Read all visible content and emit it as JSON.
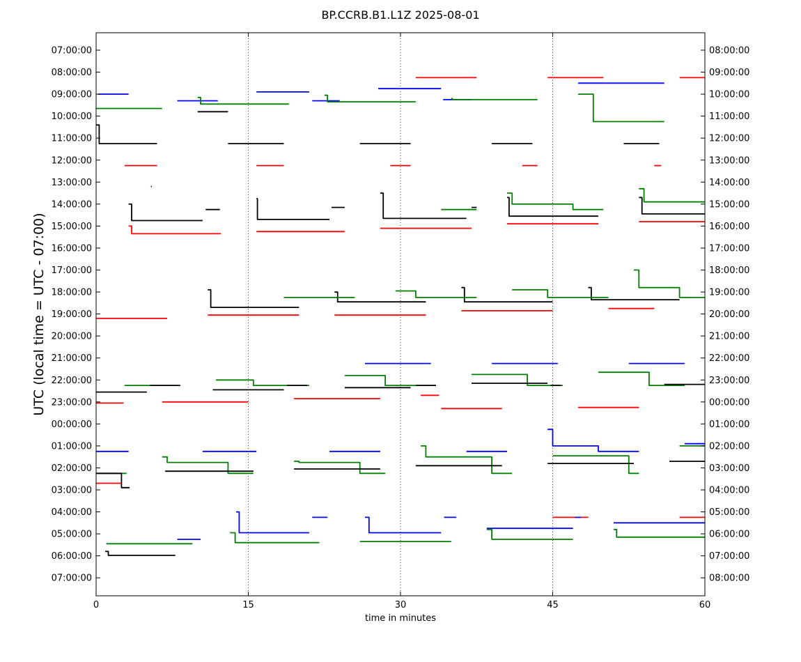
{
  "chart_data": {
    "type": "line",
    "title": "BP.CCRB.B1.L1Z 2025-08-01",
    "xlabel": "time in minutes",
    "ylabel": "UTC (local time = UTC - 07:00)",
    "xlim": [
      0,
      60
    ],
    "x_ticks": [
      0,
      15,
      30,
      45,
      60
    ],
    "x_tick_labels": [
      "0",
      "15",
      "30",
      "45",
      "60"
    ],
    "grid": "vertical dotted lines at 15, 30, 45",
    "left_tick_labels": [
      "07:00:00",
      "08:00:00",
      "09:00:00",
      "10:00:00",
      "11:00:00",
      "12:00:00",
      "13:00:00",
      "14:00:00",
      "15:00:00",
      "16:00:00",
      "17:00:00",
      "18:00:00",
      "19:00:00",
      "20:00:00",
      "21:00:00",
      "22:00:00",
      "23:00:00",
      "00:00:00",
      "01:00:00",
      "02:00:00",
      "03:00:00",
      "04:00:00",
      "05:00:00",
      "06:00:00",
      "07:00:00"
    ],
    "right_tick_labels": [
      "08:00:00",
      "09:00:00",
      "10:00:00",
      "11:00:00",
      "12:00:00",
      "13:00:00",
      "14:00:00",
      "15:00:00",
      "16:00:00",
      "17:00:00",
      "18:00:00",
      "19:00:00",
      "20:00:00",
      "21:00:00",
      "22:00:00",
      "23:00:00",
      "00:00:00",
      "01:00:00",
      "02:00:00",
      "03:00:00",
      "04:00:00",
      "05:00:00",
      "06:00:00",
      "07:00:00",
      "08:00:00"
    ],
    "colors": {
      "red": "#ff0000",
      "blue": "#0000ff",
      "green": "#008000",
      "black": "#000000"
    },
    "traces": [
      {
        "color": "blue",
        "base": "09:00",
        "segments": [
          [
            3.2,
            0.0,
            0.2
          ],
          [
            8.0,
            0.3,
            12.0
          ],
          [
            15.8,
            -0.1,
            21.0
          ],
          [
            21.3,
            0.3,
            24.0
          ],
          [
            27.8,
            -0.25,
            34.0
          ],
          [
            34.2,
            0.25,
            37.0
          ]
        ]
      },
      {
        "color": "blue",
        "base": "08:00",
        "segments": [
          [
            47.5,
            0.5,
            56.0
          ]
        ]
      },
      {
        "color": "green",
        "base": "09:00",
        "segments": [
          [
            0.0,
            0.65,
            6.5
          ],
          [
            10.0,
            0.15,
            10.3
          ],
          [
            10.3,
            0.45,
            19.0
          ],
          [
            22.5,
            0.05,
            22.8
          ],
          [
            22.8,
            0.35,
            31.5
          ],
          [
            35.0,
            0.2,
            35.1
          ],
          [
            35.1,
            0.25,
            43.5
          ]
        ]
      },
      {
        "color": "green",
        "base": "10:00",
        "segments": [
          [
            47.5,
            -1.0,
            49.0
          ],
          [
            49.0,
            0.25,
            56.0
          ]
        ]
      },
      {
        "color": "red",
        "base": "08:00",
        "segments": [
          [
            31.5,
            0.25,
            37.5
          ],
          [
            44.5,
            0.25,
            50.0
          ],
          [
            57.5,
            0.25,
            60.0
          ]
        ]
      },
      {
        "color": "black",
        "base": "10:00",
        "segments": [
          [
            10.0,
            -0.2,
            13.0
          ]
        ]
      },
      {
        "color": "black",
        "base": "11:00",
        "segments": [
          [
            0.0,
            -0.6,
            0.3
          ],
          [
            0.3,
            0.25,
            6.0
          ],
          [
            13.0,
            0.25,
            18.5
          ],
          [
            26.0,
            0.25,
            31.0
          ],
          [
            39.0,
            0.25,
            43.0
          ],
          [
            52.0,
            0.25,
            55.5
          ]
        ]
      },
      {
        "color": "red",
        "base": "12:00",
        "segments": [
          [
            2.8,
            0.25,
            6.0
          ],
          [
            15.8,
            0.25,
            18.5
          ],
          [
            29.0,
            0.25,
            31.0
          ],
          [
            42.0,
            0.25,
            43.5
          ],
          [
            55.0,
            0.25,
            55.7
          ]
        ]
      },
      {
        "color": "blue",
        "base": "13:00",
        "segments": [
          [
            5.4,
            0.2,
            5.5
          ]
        ]
      },
      {
        "color": "black",
        "base": "14:00",
        "segments": [
          [
            3.2,
            0.0,
            3.5
          ],
          [
            3.5,
            0.75,
            10.5
          ],
          [
            10.8,
            0.25,
            12.2
          ],
          [
            15.8,
            -0.25,
            15.9
          ],
          [
            15.9,
            0.7,
            23.0
          ],
          [
            23.2,
            0.15,
            24.5
          ],
          [
            28.0,
            -0.5,
            28.3
          ],
          [
            28.3,
            0.65,
            36.5
          ],
          [
            37.0,
            0.15,
            37.5
          ],
          [
            40.5,
            -0.3,
            40.7
          ],
          [
            40.7,
            0.55,
            49.5
          ],
          [
            53.5,
            -0.3,
            53.8
          ],
          [
            53.8,
            0.45,
            60.0
          ]
        ]
      },
      {
        "color": "red",
        "base": "15:00",
        "segments": [
          [
            3.2,
            0.0,
            3.5
          ],
          [
            3.5,
            0.35,
            12.3
          ],
          [
            15.8,
            0.25,
            24.5
          ],
          [
            28.0,
            0.1,
            37.0
          ],
          [
            40.5,
            -0.1,
            49.5
          ],
          [
            53.5,
            -0.2,
            60.0
          ]
        ]
      },
      {
        "color": "green",
        "base": "14:00",
        "segments": [
          [
            34.0,
            0.25,
            37.5
          ],
          [
            40.5,
            -0.5,
            41.0
          ],
          [
            41.0,
            0.0,
            47.0
          ],
          [
            47.0,
            0.25,
            50.0
          ],
          [
            53.5,
            -0.7,
            54.0
          ],
          [
            54.0,
            -0.1,
            60.0
          ]
        ]
      },
      {
        "color": "black",
        "base": "18:00",
        "segments": [
          [
            11.0,
            -0.1,
            11.3
          ],
          [
            11.3,
            0.7,
            20.0
          ],
          [
            23.5,
            0.0,
            23.8
          ],
          [
            23.8,
            0.45,
            32.5
          ],
          [
            36.0,
            -0.2,
            36.3
          ],
          [
            36.3,
            0.45,
            45.0
          ],
          [
            48.5,
            -0.2,
            48.8
          ],
          [
            48.8,
            0.35,
            57.5
          ]
        ]
      },
      {
        "color": "green",
        "base": "18:00",
        "segments": [
          [
            18.5,
            0.25,
            25.5
          ],
          [
            29.5,
            -0.05,
            31.5
          ],
          [
            31.5,
            0.25,
            37.5
          ],
          [
            41.0,
            -0.1,
            44.5
          ],
          [
            44.5,
            0.25,
            50.5
          ],
          [
            53.0,
            -1.0,
            53.5
          ],
          [
            53.5,
            -0.2,
            57.5
          ],
          [
            57.5,
            0.25,
            60.0
          ]
        ]
      },
      {
        "color": "red",
        "base": "19:00",
        "segments": [
          [
            0.0,
            0.2,
            7.0
          ],
          [
            11.0,
            0.05,
            20.0
          ],
          [
            23.5,
            0.05,
            32.5
          ],
          [
            36.0,
            -0.15,
            45.0
          ],
          [
            50.5,
            -0.25,
            55.0
          ]
        ]
      },
      {
        "color": "blue",
        "base": "21:00",
        "segments": [
          [
            26.5,
            0.25,
            33.0
          ],
          [
            39.0,
            0.25,
            45.5
          ],
          [
            52.5,
            0.25,
            58.0
          ]
        ]
      },
      {
        "color": "green",
        "base": "22:00",
        "segments": [
          [
            2.8,
            0.25,
            8.0
          ],
          [
            11.8,
            0.0,
            15.5
          ],
          [
            15.5,
            0.25,
            21.0
          ],
          [
            24.5,
            -0.2,
            28.5
          ],
          [
            28.5,
            0.25,
            33.5
          ],
          [
            37.0,
            -0.25,
            42.5
          ],
          [
            42.5,
            0.25,
            46.0
          ],
          [
            49.5,
            -0.35,
            54.5
          ],
          [
            54.5,
            0.25,
            58.0
          ]
        ]
      },
      {
        "color": "black",
        "base": "22:00",
        "segments": [
          [
            0.0,
            0.55,
            5.0
          ],
          [
            5.3,
            0.25,
            8.3
          ],
          [
            11.5,
            0.45,
            18.5
          ],
          [
            18.8,
            0.25,
            20.8
          ],
          [
            24.5,
            0.35,
            31.0
          ],
          [
            31.5,
            0.25,
            33.5
          ],
          [
            37.0,
            0.15,
            44.5
          ],
          [
            44.8,
            0.25,
            45.8
          ],
          [
            56.0,
            0.2,
            60.0
          ]
        ]
      },
      {
        "color": "red",
        "base": "23:00",
        "segments": [
          [
            0.0,
            0.05,
            2.7
          ],
          [
            6.5,
            0.0,
            15.0
          ],
          [
            19.5,
            -0.15,
            28.0
          ],
          [
            32.0,
            -0.3,
            33.8
          ],
          [
            34.0,
            0.3,
            40.0
          ],
          [
            47.5,
            0.25,
            53.5
          ]
        ]
      },
      {
        "color": "blue",
        "base": "01:00",
        "segments": [
          [
            0.0,
            0.25,
            3.2
          ],
          [
            10.5,
            0.25,
            15.8
          ],
          [
            23.0,
            0.25,
            28.0
          ],
          [
            36.5,
            0.25,
            40.5
          ],
          [
            44.5,
            -0.75,
            45.0
          ],
          [
            45.0,
            0.0,
            49.5
          ],
          [
            49.5,
            0.25,
            53.5
          ],
          [
            58.0,
            -0.1,
            60.0
          ]
        ]
      },
      {
        "color": "green",
        "base": "02:00",
        "segments": [
          [
            0.0,
            0.25,
            3.0
          ],
          [
            6.5,
            -0.5,
            7.0
          ],
          [
            7.0,
            -0.25,
            13.0
          ],
          [
            13.0,
            0.25,
            15.5
          ],
          [
            19.5,
            -0.3,
            20.0
          ],
          [
            20.0,
            -0.25,
            26.0
          ],
          [
            26.0,
            0.25,
            28.5
          ],
          [
            32.0,
            -1.0,
            32.5
          ],
          [
            32.5,
            -0.5,
            39.0
          ],
          [
            39.0,
            0.25,
            41.0
          ],
          [
            45.0,
            -0.55,
            52.5
          ],
          [
            52.5,
            0.25,
            53.5
          ],
          [
            57.5,
            -1.0,
            60.0
          ]
        ]
      },
      {
        "color": "black",
        "base": "02:00",
        "segments": [
          [
            0.0,
            0.25,
            2.5
          ],
          [
            2.5,
            0.9,
            3.3
          ],
          [
            6.8,
            0.15,
            15.5
          ],
          [
            19.5,
            0.05,
            28.0
          ],
          [
            31.5,
            -0.1,
            40.0
          ],
          [
            44.5,
            -0.2,
            53.0
          ],
          [
            56.5,
            -0.3,
            60.0
          ]
        ]
      },
      {
        "color": "red",
        "base": "02:00",
        "segments": [
          [
            0.0,
            0.7,
            2.5
          ]
        ]
      },
      {
        "color": "red",
        "base": "04:00",
        "segments": [
          [
            45.0,
            0.25,
            48.5
          ],
          [
            57.5,
            0.25,
            60.0
          ]
        ]
      },
      {
        "color": "blue",
        "base": "04:00",
        "segments": [
          [
            13.8,
            0.0,
            14.1
          ],
          [
            14.1,
            0.95,
            21.0
          ],
          [
            21.3,
            0.25,
            22.8
          ],
          [
            26.5,
            0.25,
            26.9
          ],
          [
            26.9,
            0.95,
            34.0
          ],
          [
            34.3,
            0.25,
            35.5
          ],
          [
            38.5,
            0.75,
            47.0
          ],
          [
            47.2,
            0.25,
            47.8
          ],
          [
            51.0,
            0.5,
            60.0
          ]
        ]
      },
      {
        "color": "blue",
        "base": "05:00",
        "segments": [
          [
            8.0,
            0.25,
            10.3
          ]
        ]
      },
      {
        "color": "green",
        "base": "05:00",
        "segments": [
          [
            1.0,
            0.45,
            9.5
          ],
          [
            13.2,
            -0.05,
            13.7
          ],
          [
            13.7,
            0.4,
            22.0
          ],
          [
            26.0,
            0.35,
            35.0
          ],
          [
            38.5,
            -0.2,
            39.0
          ],
          [
            39.0,
            0.25,
            47.0
          ],
          [
            51.0,
            -0.2,
            51.3
          ],
          [
            51.3,
            0.15,
            60.0
          ]
        ]
      },
      {
        "color": "black",
        "base": "05:00",
        "segments": [
          [
            0.9,
            0.8,
            1.2
          ],
          [
            1.2,
            0.98,
            7.8
          ]
        ]
      }
    ]
  }
}
